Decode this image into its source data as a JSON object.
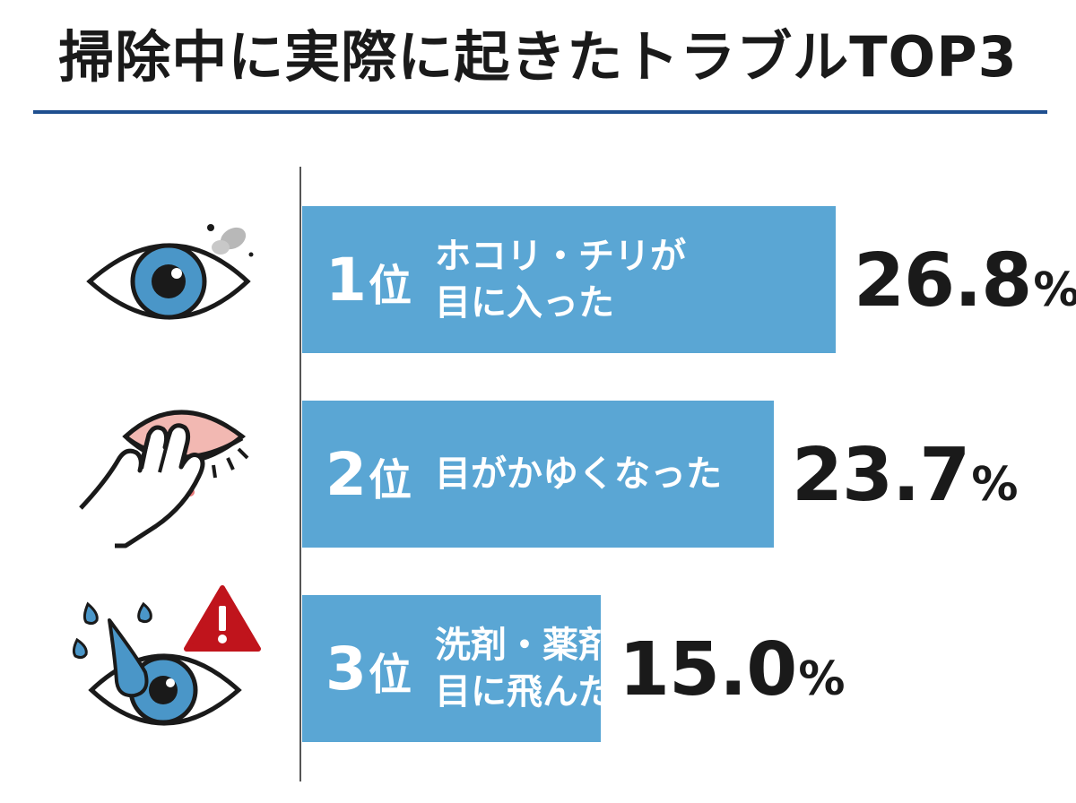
{
  "title": "掃除中に実際に起きたトラブルTOP3",
  "colors": {
    "bar": "#5aa6d4",
    "title_rule": "#1f4f8f",
    "warning": "#c0141c",
    "iris": "#4a96c8"
  },
  "icons": [
    "eye-dust-icon",
    "itchy-eye-rubbing-icon",
    "eye-splash-warning-icon"
  ],
  "chart_data": {
    "type": "bar",
    "orientation": "horizontal",
    "title": "掃除中に実際に起きたトラブルTOP3",
    "unit": "%",
    "xlim": [
      0,
      30
    ],
    "items": [
      {
        "rank": "1",
        "rank_suffix": "位",
        "label_lines": [
          "ホコリ・チリが",
          "目に入った"
        ],
        "value": 26.8,
        "value_text": "26.8",
        "pct": "%"
      },
      {
        "rank": "2",
        "rank_suffix": "位",
        "label_lines": [
          "目がかゆくなった"
        ],
        "value": 23.7,
        "value_text": "23.7",
        "pct": "%"
      },
      {
        "rank": "3",
        "rank_suffix": "位",
        "label_lines": [
          "洗剤・薬剤が",
          "目に飛んだ"
        ],
        "value": 15.0,
        "value_text": "15.0",
        "pct": "%"
      }
    ]
  }
}
